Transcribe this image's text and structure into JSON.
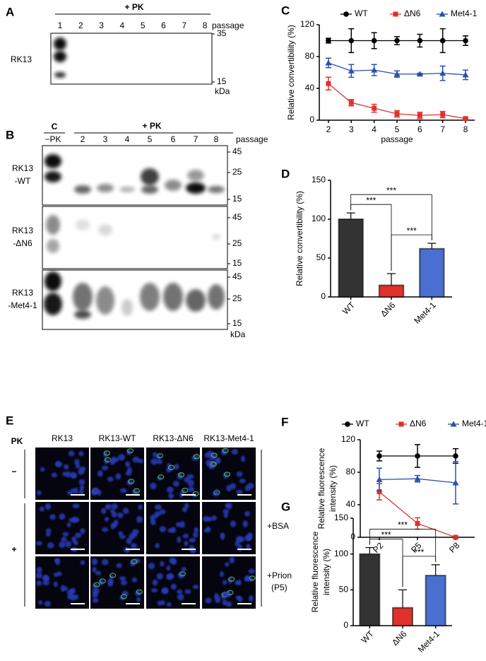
{
  "panel_a": {
    "label": "A",
    "treatment": "+ PK",
    "lanes": [
      "1",
      "2",
      "3",
      "4",
      "5",
      "6",
      "7",
      "8"
    ],
    "lane_axis": "passage",
    "row": "RK13",
    "markers": [
      "35",
      "15"
    ],
    "unit": "kDa"
  },
  "panel_b": {
    "label": "B",
    "control": "C",
    "control_lane": "−PK",
    "treatment": "+ PK",
    "lanes": [
      "2",
      "3",
      "4",
      "5",
      "6",
      "7",
      "8"
    ],
    "lane_axis": "passage",
    "rows": [
      {
        "label": [
          "RK13",
          "-WT"
        ],
        "markers": [
          "45",
          "25",
          "15"
        ]
      },
      {
        "label": [
          "RK13",
          "-ΔN6"
        ],
        "markers": [
          "45",
          "25",
          "15"
        ]
      },
      {
        "label": [
          "RK13",
          "-Met4-1"
        ],
        "markers": [
          "45",
          "25",
          "15"
        ]
      }
    ],
    "unit": "kDa"
  },
  "panel_e": {
    "label": "E",
    "treatment_axis": "PK",
    "columns": [
      "RK13",
      "RK13-WT",
      "RK13-ΔN6",
      "RK13-Met4-1"
    ],
    "rows": [
      "−",
      "+"
    ],
    "conditions": [
      [
        "+BSA"
      ],
      [
        "+Prion",
        "(P5)"
      ]
    ]
  },
  "chart_data": [
    {
      "panel_label": "C",
      "type": "line",
      "y_label": "Relative convertibility (%)",
      "x_label": "passage",
      "x": [
        2,
        3,
        4,
        5,
        6,
        7,
        8
      ],
      "xlim": [
        1.6,
        8.4
      ],
      "xticks": [
        2,
        3,
        4,
        5,
        6,
        7,
        8
      ],
      "ylim": [
        0,
        120
      ],
      "yticks": [
        0,
        40,
        80,
        120
      ],
      "legend": "top",
      "series": [
        {
          "name": "WT",
          "color": "#000000",
          "marker": "circle",
          "values": [
            100,
            100,
            100,
            100,
            100,
            100,
            100
          ],
          "errors": [
            3,
            15,
            10,
            5,
            8,
            15,
            6
          ]
        },
        {
          "name": "ΔN6",
          "color": "#e0312b",
          "marker": "square",
          "values": [
            46,
            22,
            15,
            8,
            6,
            7,
            2
          ],
          "errors": [
            8,
            4,
            5,
            4,
            4,
            4,
            1
          ]
        },
        {
          "name": "Met4-1",
          "color": "#2a4fb0",
          "marker": "triangle",
          "values": [
            72,
            62,
            63,
            58,
            58,
            59,
            57
          ],
          "errors": [
            6,
            8,
            7,
            4,
            1,
            9,
            6
          ]
        }
      ]
    },
    {
      "panel_label": "D",
      "type": "bar",
      "y_label": "Relative convertibility (%)",
      "categories": [
        "WT",
        "ΔN6",
        "Met4-1"
      ],
      "values": [
        100,
        15,
        62
      ],
      "errors": [
        8,
        15,
        7
      ],
      "colors": [
        "#333333",
        "#e0312b",
        "#4a6fd0"
      ],
      "ylim": [
        0,
        150
      ],
      "yticks": [
        0,
        50,
        100,
        150
      ],
      "annotations": [
        {
          "text": "***",
          "between": [
            0,
            1
          ]
        },
        {
          "text": "***",
          "between": [
            1,
            2
          ]
        },
        {
          "text": "***",
          "between": [
            0,
            2
          ]
        }
      ]
    },
    {
      "panel_label": "F",
      "type": "line",
      "y_label": [
        "Relative fluorescence",
        "intensity (%)"
      ],
      "categories": [
        "P2",
        "P5",
        "P8"
      ],
      "ylim": [
        0,
        120
      ],
      "yticks": [
        0,
        40,
        80,
        120
      ],
      "legend": "top",
      "series": [
        {
          "name": "WT",
          "color": "#000000",
          "marker": "circle",
          "values": [
            100,
            100,
            100
          ],
          "errors": [
            6,
            14,
            9
          ]
        },
        {
          "name": "ΔN6",
          "color": "#e0312b",
          "marker": "square",
          "values": [
            56,
            17,
            0
          ],
          "errors": [
            10,
            7,
            1
          ]
        },
        {
          "name": "Met4-1",
          "color": "#2a4fb0",
          "marker": "triangle",
          "values": [
            71,
            72,
            67
          ],
          "errors": [
            14,
            4,
            26
          ]
        }
      ]
    },
    {
      "panel_label": "G",
      "type": "bar",
      "y_label": [
        "Relative fluorescence",
        "intensity (%)"
      ],
      "categories": [
        "WT",
        "ΔN6",
        "Met4-1"
      ],
      "values": [
        100,
        25,
        70
      ],
      "errors": [
        9,
        25,
        15
      ],
      "colors": [
        "#333333",
        "#e0312b",
        "#4a6fd0"
      ],
      "ylim": [
        0,
        150
      ],
      "yticks": [
        0,
        50,
        100,
        150
      ],
      "annotations": [
        {
          "text": "***",
          "between": [
            0,
            1
          ]
        },
        {
          "text": "***",
          "between": [
            1,
            2
          ]
        },
        {
          "text": "***",
          "between": [
            0,
            2
          ]
        }
      ]
    }
  ]
}
